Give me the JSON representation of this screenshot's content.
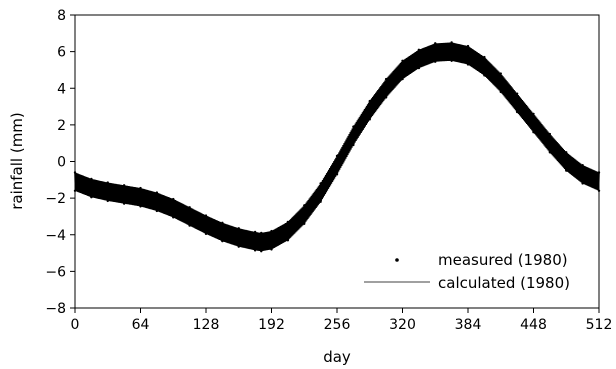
{
  "chart_data": {
    "type": "line",
    "title": "",
    "xlabel": "day",
    "ylabel": "rainfall (mm)",
    "xlim": [
      0,
      512
    ],
    "ylim": [
      -8,
      8
    ],
    "xticks": [
      0,
      64,
      128,
      192,
      256,
      320,
      384,
      448,
      512
    ],
    "yticks": [
      -8,
      -6,
      -4,
      -2,
      0,
      2,
      4,
      6,
      8
    ],
    "xtick_labels": [
      "0",
      "64",
      "128",
      "192",
      "256",
      "320",
      "384",
      "448",
      "512"
    ],
    "ytick_labels": [
      "−8",
      "−6",
      "−4",
      "−2",
      "0",
      "2",
      "4",
      "6",
      "8"
    ],
    "grid": false,
    "legend_position": "lower-right",
    "series": [
      {
        "name": "measured (1980)",
        "style": "points",
        "color": "#000000",
        "band_half_width": 0.5,
        "x": [
          0,
          16,
          32,
          48,
          64,
          80,
          96,
          112,
          128,
          144,
          160,
          176,
          182,
          192,
          208,
          224,
          240,
          256,
          272,
          288,
          304,
          320,
          336,
          352,
          368,
          384,
          400,
          416,
          432,
          448,
          464,
          480,
          496,
          512
        ],
        "y": [
          -1.1,
          -1.45,
          -1.65,
          -1.8,
          -1.95,
          -2.2,
          -2.55,
          -3.0,
          -3.45,
          -3.85,
          -4.15,
          -4.35,
          -4.4,
          -4.3,
          -3.8,
          -2.9,
          -1.7,
          -0.2,
          1.4,
          2.8,
          4.0,
          5.0,
          5.6,
          5.95,
          6.0,
          5.8,
          5.2,
          4.3,
          3.2,
          2.1,
          1.0,
          0.0,
          -0.7,
          -1.1
        ]
      },
      {
        "name": "calculated (1980)",
        "style": "line",
        "color": "#000000",
        "x": [
          0,
          16,
          32,
          48,
          64,
          80,
          96,
          112,
          128,
          144,
          160,
          176,
          182,
          192,
          208,
          224,
          240,
          256,
          272,
          288,
          304,
          320,
          336,
          352,
          368,
          384,
          400,
          416,
          432,
          448,
          464,
          480,
          496,
          512
        ],
        "y": [
          -1.1,
          -1.45,
          -1.65,
          -1.8,
          -1.95,
          -2.2,
          -2.55,
          -3.0,
          -3.45,
          -3.85,
          -4.15,
          -4.35,
          -4.4,
          -4.3,
          -3.8,
          -2.9,
          -1.7,
          -0.2,
          1.4,
          2.8,
          4.0,
          5.0,
          5.6,
          5.95,
          6.0,
          5.8,
          5.2,
          4.3,
          3.2,
          2.1,
          1.0,
          0.0,
          -0.7,
          -1.1
        ]
      }
    ]
  }
}
